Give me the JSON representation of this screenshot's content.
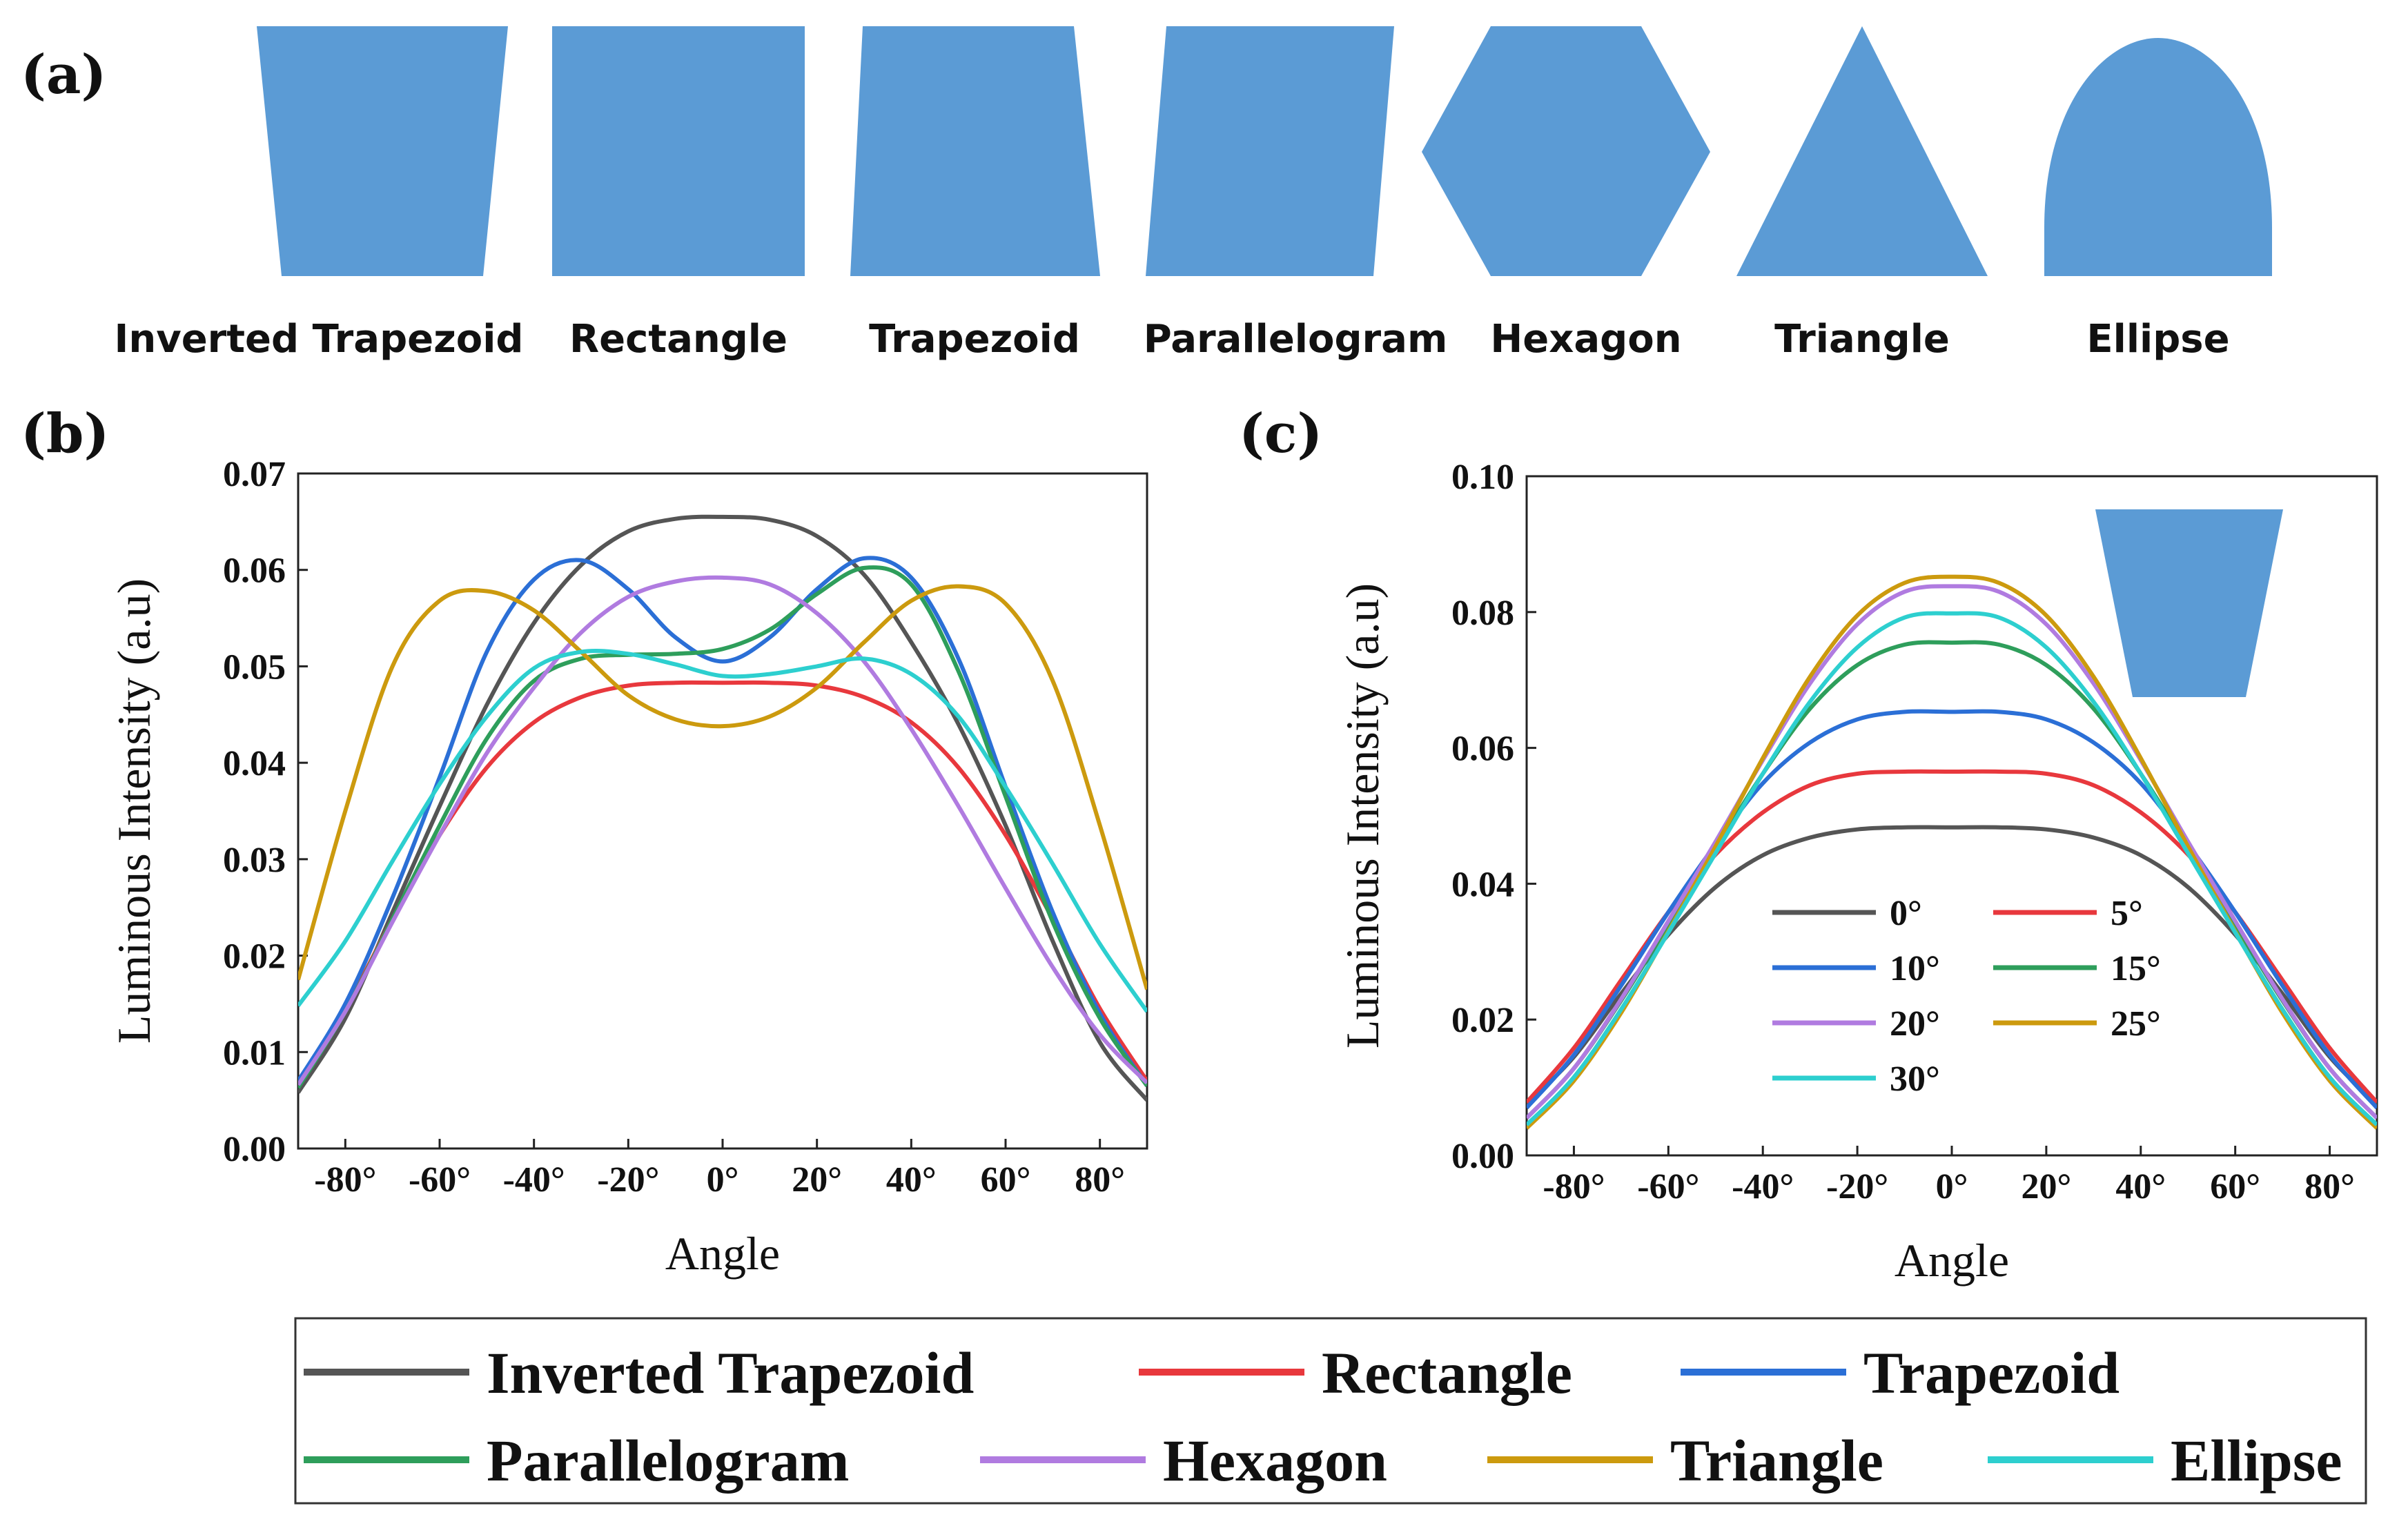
{
  "shapes_panel": {
    "label": "(a)",
    "fill": "#5b9bd5",
    "shapes": [
      {
        "name": "inverted-trapezoid",
        "label": "Inverted Trapezoid"
      },
      {
        "name": "rectangle",
        "label": "Rectangle"
      },
      {
        "name": "trapezoid",
        "label": "Trapezoid"
      },
      {
        "name": "parallelogram",
        "label": "Parallelogram"
      },
      {
        "name": "hexagon",
        "label": "Hexagon"
      },
      {
        "name": "triangle",
        "label": "Triangle"
      },
      {
        "name": "ellipse",
        "label": "Ellipse"
      }
    ]
  },
  "chart_data": [
    {
      "panel_label": "(b)",
      "type": "line",
      "xlabel": "Angle",
      "ylabel": "Luminous Intensity (a.u)",
      "xlim": [
        -90,
        90
      ],
      "ylim": [
        0,
        0.07
      ],
      "xticks": [
        -80,
        -60,
        -40,
        -20,
        0,
        20,
        40,
        60,
        80
      ],
      "xtick_labels": [
        "-80°",
        "-60°",
        "-40°",
        "-20°",
        "0°",
        "20°",
        "40°",
        "60°",
        "80°"
      ],
      "yticks": [
        0,
        0.01,
        0.02,
        0.03,
        0.04,
        0.05,
        0.06,
        0.07
      ],
      "ytick_labels": [
        "0.00",
        "0.01",
        "0.02",
        "0.03",
        "0.04",
        "0.05",
        "0.06",
        "0.07"
      ],
      "x": [
        -90,
        -80,
        -70,
        -60,
        -50,
        -40,
        -30,
        -20,
        -10,
        0,
        10,
        20,
        30,
        40,
        50,
        60,
        70,
        80,
        90
      ],
      "series": [
        {
          "name": "Inverted Trapezoid",
          "color": "#555555",
          "values": [
            0.0058,
            0.0135,
            0.0245,
            0.0355,
            0.046,
            0.0545,
            0.0605,
            0.064,
            0.0653,
            0.0655,
            0.0652,
            0.0635,
            0.0595,
            0.0525,
            0.044,
            0.0335,
            0.0215,
            0.011,
            0.005
          ]
        },
        {
          "name": "Rectangle",
          "color": "#e8383d",
          "values": [
            0.007,
            0.0145,
            0.0238,
            0.0325,
            0.0395,
            0.0442,
            0.0468,
            0.048,
            0.0483,
            0.0483,
            0.0483,
            0.048,
            0.0468,
            0.0442,
            0.0395,
            0.0325,
            0.0238,
            0.0145,
            0.007
          ]
        },
        {
          "name": "Trapezoid",
          "color": "#2b6fd6",
          "values": [
            0.007,
            0.015,
            0.026,
            0.0385,
            0.0515,
            0.059,
            0.061,
            0.058,
            0.053,
            0.0505,
            0.053,
            0.058,
            0.0612,
            0.0592,
            0.0508,
            0.0375,
            0.0245,
            0.014,
            0.0065
          ]
        },
        {
          "name": "Parallelogram",
          "color": "#2e9e5b",
          "values": [
            0.0063,
            0.0142,
            0.0238,
            0.0335,
            0.0425,
            0.0485,
            0.0508,
            0.0512,
            0.0513,
            0.0518,
            0.0538,
            0.0575,
            0.0602,
            0.0585,
            0.0495,
            0.0365,
            0.0235,
            0.0135,
            0.0065
          ]
        },
        {
          "name": "Hexagon",
          "color": "#b07be0",
          "values": [
            0.0066,
            0.0142,
            0.0235,
            0.0325,
            0.041,
            0.0478,
            0.0535,
            0.0572,
            0.0588,
            0.0592,
            0.0585,
            0.0555,
            0.0505,
            0.0435,
            0.0355,
            0.027,
            0.0188,
            0.0118,
            0.0068
          ]
        },
        {
          "name": "Triangle",
          "color": "#cc9a0e",
          "values": [
            0.0175,
            0.035,
            0.05,
            0.0568,
            0.0578,
            0.0558,
            0.0515,
            0.047,
            0.0445,
            0.0438,
            0.0448,
            0.0478,
            0.0525,
            0.0568,
            0.0583,
            0.0565,
            0.0485,
            0.0335,
            0.0165
          ]
        },
        {
          "name": "Ellipse",
          "color": "#2dcfcf",
          "values": [
            0.0148,
            0.0215,
            0.0298,
            0.0378,
            0.0448,
            0.0498,
            0.0515,
            0.0513,
            0.0502,
            0.049,
            0.0492,
            0.05,
            0.0508,
            0.0492,
            0.0448,
            0.0375,
            0.0295,
            0.0212,
            0.0142
          ]
        }
      ]
    },
    {
      "panel_label": "(c)",
      "type": "line",
      "xlabel": "Angle",
      "ylabel": "Luminous Intensity (a.u)",
      "xlim": [
        -90,
        90
      ],
      "ylim": [
        0,
        0.1
      ],
      "xticks": [
        -80,
        -60,
        -40,
        -20,
        0,
        20,
        40,
        60,
        80
      ],
      "xtick_labels": [
        "-80°",
        "-60°",
        "-40°",
        "-20°",
        "0°",
        "20°",
        "40°",
        "60°",
        "80°"
      ],
      "yticks": [
        0,
        0.02,
        0.04,
        0.06,
        0.08,
        0.1
      ],
      "ytick_labels": [
        "0.00",
        "0.02",
        "0.04",
        "0.06",
        "0.08",
        "0.10"
      ],
      "x": [
        -90,
        -80,
        -70,
        -60,
        -50,
        -40,
        -30,
        -20,
        -10,
        0,
        10,
        20,
        30,
        40,
        50,
        60,
        70,
        80,
        90
      ],
      "inset_shape": "inverted-trapezoid",
      "series": [
        {
          "name": "0°",
          "color": "#555555",
          "values": [
            0.0075,
            0.0145,
            0.0238,
            0.0325,
            0.0395,
            0.0442,
            0.0468,
            0.048,
            0.0483,
            0.0483,
            0.0483,
            0.048,
            0.0468,
            0.0442,
            0.0395,
            0.0325,
            0.0238,
            0.0145,
            0.0075
          ]
        },
        {
          "name": "5°",
          "color": "#e8383d",
          "values": [
            0.0078,
            0.0158,
            0.0258,
            0.0358,
            0.0443,
            0.0505,
            0.0545,
            0.0562,
            0.0565,
            0.0565,
            0.0565,
            0.0562,
            0.0545,
            0.0505,
            0.0443,
            0.0358,
            0.0258,
            0.0158,
            0.0078
          ]
        },
        {
          "name": "10°",
          "color": "#2b6fd6",
          "values": [
            0.007,
            0.0148,
            0.025,
            0.0358,
            0.0458,
            0.0548,
            0.0608,
            0.0642,
            0.0653,
            0.0653,
            0.0653,
            0.0642,
            0.0608,
            0.0548,
            0.0458,
            0.0358,
            0.025,
            0.0148,
            0.007
          ]
        },
        {
          "name": "15°",
          "color": "#2e9e5b",
          "values": [
            0.0055,
            0.0128,
            0.0228,
            0.034,
            0.0452,
            0.0562,
            0.0658,
            0.0722,
            0.0752,
            0.0755,
            0.0752,
            0.0722,
            0.0658,
            0.0562,
            0.0452,
            0.034,
            0.0228,
            0.0128,
            0.0055
          ]
        },
        {
          "name": "20°",
          "color": "#b07be0",
          "values": [
            0.0055,
            0.0128,
            0.023,
            0.0345,
            0.0462,
            0.0582,
            0.0695,
            0.0782,
            0.083,
            0.0838,
            0.083,
            0.0782,
            0.0695,
            0.0582,
            0.0462,
            0.0345,
            0.023,
            0.0128,
            0.0055
          ]
        },
        {
          "name": "25°",
          "color": "#cc9a0e",
          "values": [
            0.004,
            0.011,
            0.021,
            0.033,
            0.0455,
            0.0585,
            0.0705,
            0.0795,
            0.0843,
            0.0852,
            0.0843,
            0.0795,
            0.0705,
            0.0585,
            0.0455,
            0.033,
            0.021,
            0.011,
            0.004
          ]
        },
        {
          "name": "30°",
          "color": "#2dcfcf",
          "values": [
            0.0045,
            0.0115,
            0.0215,
            0.0328,
            0.0445,
            0.0562,
            0.0668,
            0.0748,
            0.0792,
            0.0798,
            0.0792,
            0.0748,
            0.0668,
            0.0562,
            0.0445,
            0.0328,
            0.0215,
            0.0115,
            0.0045
          ]
        }
      ]
    }
  ]
}
